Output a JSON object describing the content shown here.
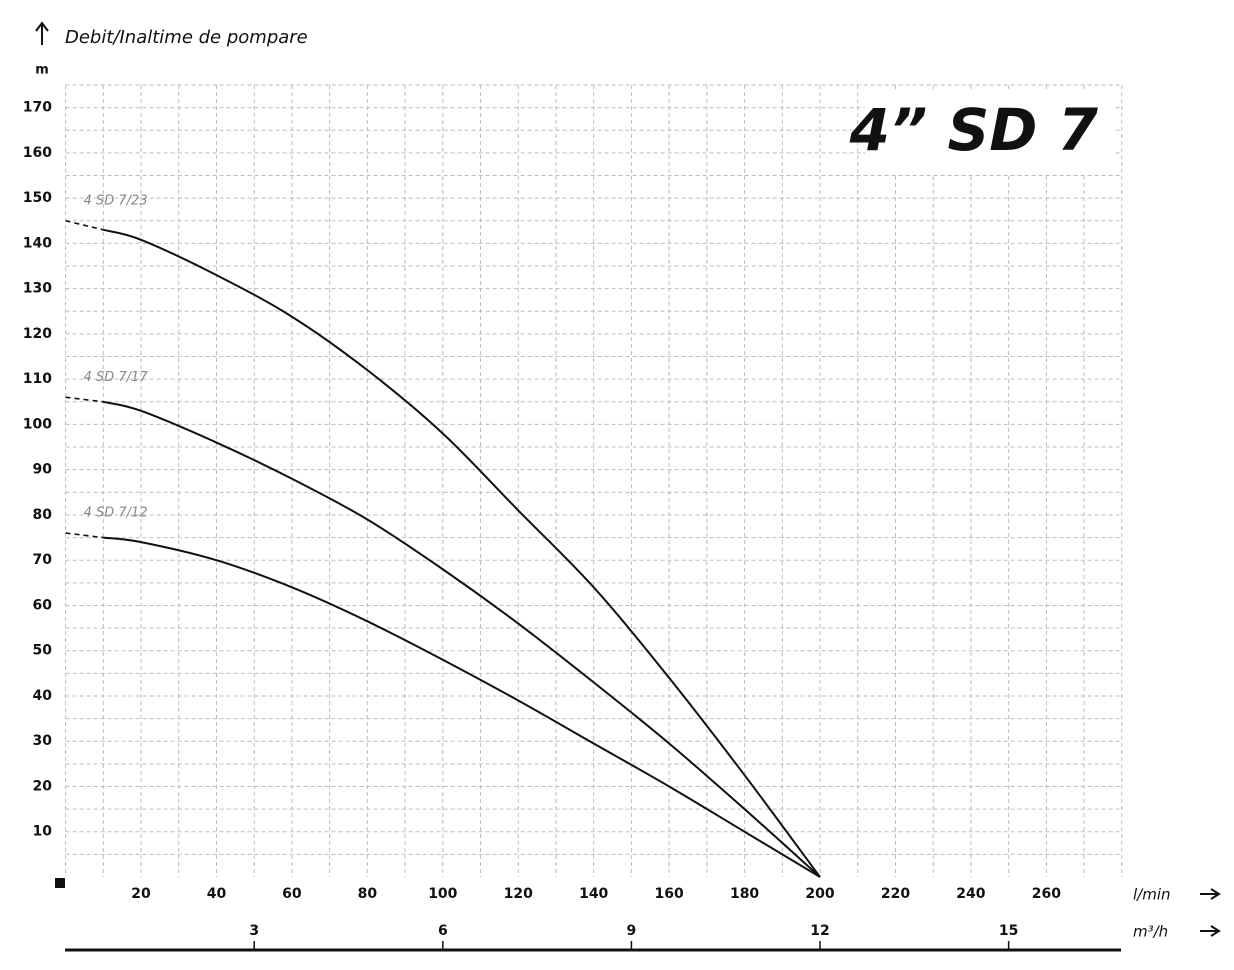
{
  "chart_data": {
    "type": "line",
    "title": "4” SD 7",
    "y_axis_title": "Debit/Inaltime de pompare",
    "y_unit": "m",
    "x_unit": "l/min",
    "x2_unit": "m³/h",
    "xlim": [
      0,
      280
    ],
    "xticks": [
      20,
      40,
      60,
      80,
      100,
      120,
      140,
      160,
      180,
      200,
      220,
      240,
      260
    ],
    "x2lim": [
      0,
      16.8
    ],
    "x2ticks": [
      3,
      6,
      9,
      12,
      15
    ],
    "ylim": [
      0,
      175
    ],
    "yticks": [
      10,
      20,
      30,
      40,
      50,
      60,
      70,
      80,
      90,
      100,
      110,
      120,
      130,
      140,
      150,
      160,
      170
    ],
    "grid": true,
    "series": [
      {
        "name": "4 SD 7/23",
        "color": "#111111",
        "x": [
          0,
          10,
          20,
          40,
          60,
          80,
          100,
          120,
          140,
          160,
          180,
          200
        ],
        "values": [
          145,
          143,
          140.8,
          133,
          123.8,
          112,
          98,
          81,
          64,
          44,
          22.5,
          0
        ]
      },
      {
        "name": "4 SD 7/17",
        "color": "#111111",
        "x": [
          0,
          10,
          20,
          40,
          60,
          80,
          100,
          120,
          140,
          160,
          180,
          200
        ],
        "values": [
          106,
          105,
          103,
          96,
          88,
          79,
          68,
          56,
          43,
          29.5,
          15,
          0
        ]
      },
      {
        "name": "4 SD 7/12",
        "color": "#111111",
        "x": [
          0,
          10,
          20,
          40,
          60,
          80,
          100,
          120,
          140,
          160,
          180,
          200
        ],
        "values": [
          76,
          75,
          74,
          70,
          64,
          56.5,
          48,
          39,
          29.5,
          20,
          10,
          0
        ]
      }
    ]
  }
}
